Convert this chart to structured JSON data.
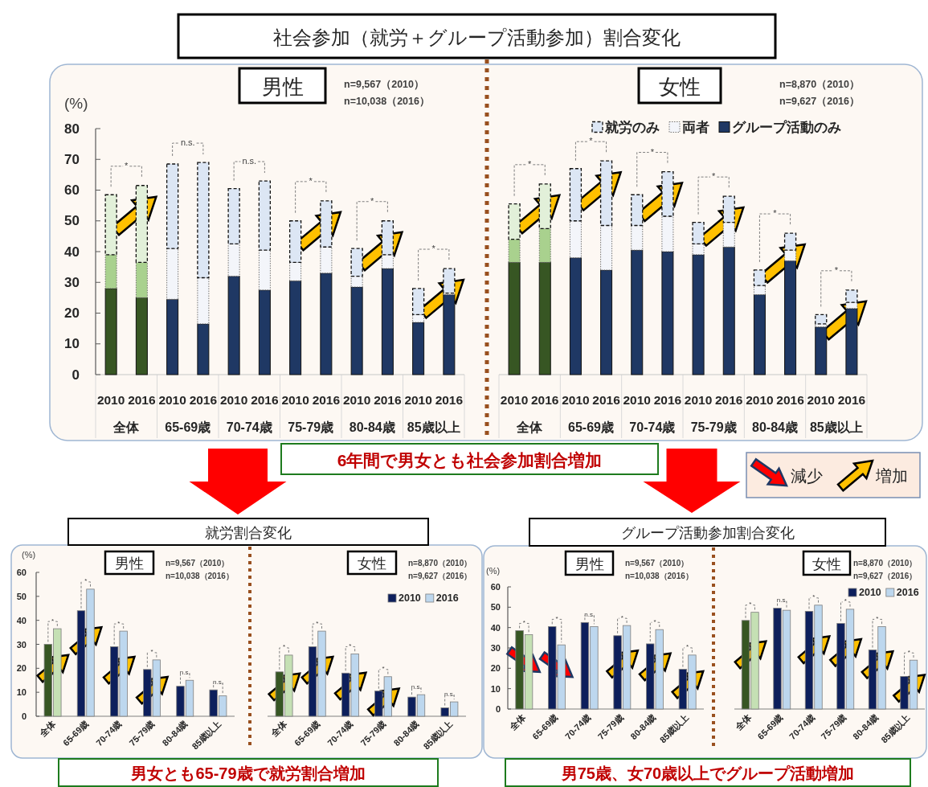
{
  "chart_data": [
    {
      "type": "other",
      "title": "社会参加（就労＋グループ活動参加）割合変化",
      "annotations": [
        "6年間で男女とも社会参加割合増加"
      ]
    },
    {
      "type": "bar",
      "stacked": true,
      "title": "男性",
      "ylabel": "(%)",
      "categories": [
        "2010",
        "2016",
        "2010",
        "2016",
        "2010",
        "2016",
        "2010",
        "2016",
        "2010",
        "2016",
        "2010",
        "2016"
      ],
      "series": [
        {
          "colors": [
            "#375623",
            "#375623",
            "#1f3864",
            "#1f3864",
            "#1f3864",
            "#1f3864",
            "#1f3864",
            "#1f3864",
            "#1f3864",
            "#1f3864",
            "#1f3864",
            "#1f3864"
          ],
          "values": [
            28,
            25,
            24.5,
            16.5,
            32,
            27.5,
            30.5,
            33,
            28.5,
            34.5,
            17,
            26
          ]
        },
        {
          "colors": [
            "#a9d18e",
            "#a9d18e",
            "#f3f5fa",
            "#f3f5fa",
            "#f3f5fa",
            "#f3f5fa",
            "#f3f5fa",
            "#f3f5fa",
            "#f3f5fa",
            "#f3f5fa",
            "#f3f5fa",
            "#f3f5fa"
          ],
          "values": [
            11,
            11.5,
            16.5,
            15,
            10.5,
            13,
            6,
            8.5,
            3.5,
            4.5,
            2.5,
            0.5
          ]
        },
        {
          "colors": [
            "#e2f0d9",
            "#e2f0d9",
            "#dce6f4",
            "#dce6f4",
            "#dce6f4",
            "#dce6f4",
            "#dce6f4",
            "#dce6f4",
            "#dce6f4",
            "#dce6f4",
            "#dce6f4",
            "#dce6f4"
          ],
          "values": [
            19.5,
            25,
            27.5,
            37.5,
            18,
            22.5,
            13.5,
            15,
            9,
            11,
            8.5,
            8
          ]
        }
      ],
      "ylim": [
        0,
        80
      ],
      "yticks": [
        0,
        10,
        20,
        30,
        40,
        50,
        60,
        70,
        80
      ],
      "annotations": [
        "n=9,567（2010）",
        "n=10,038（2016）",
        "全体",
        "65-69歳",
        "70-74歳",
        "75-79歳",
        "80-84歳",
        "85歳以上",
        "*",
        "n.s.",
        "n.s.",
        "*",
        "*",
        "*"
      ]
    },
    {
      "type": "bar",
      "stacked": true,
      "title": "女性",
      "categories": [
        "2010",
        "2016",
        "2010",
        "2016",
        "2010",
        "2016",
        "2010",
        "2016",
        "2010",
        "2016",
        "2010",
        "2016"
      ],
      "series": [
        {
          "name": "グループ活動のみ",
          "color": "#1f3864",
          "colors": [
            "#375623",
            "#375623",
            "#1f3864",
            "#1f3864",
            "#1f3864",
            "#1f3864",
            "#1f3864",
            "#1f3864",
            "#1f3864",
            "#1f3864",
            "#1f3864",
            "#1f3864"
          ],
          "values": [
            36.5,
            36.5,
            38,
            34,
            40.5,
            40,
            39,
            41.5,
            26,
            37,
            15.5,
            21.5
          ]
        },
        {
          "name": "両者",
          "color": "#f3f5fa",
          "colors": [
            "#a9d18e",
            "#a9d18e",
            "#f3f5fa",
            "#f3f5fa",
            "#f3f5fa",
            "#f3f5fa",
            "#f3f5fa",
            "#f3f5fa",
            "#f3f5fa",
            "#f3f5fa",
            "#f3f5fa",
            "#f3f5fa"
          ],
          "values": [
            7.5,
            11,
            12,
            14.5,
            8,
            11.5,
            3.5,
            8,
            3,
            3.5,
            1,
            2
          ]
        },
        {
          "name": "就労のみ",
          "color": "#dce6f4",
          "colors": [
            "#e2f0d9",
            "#e2f0d9",
            "#dce6f4",
            "#dce6f4",
            "#dce6f4",
            "#dce6f4",
            "#dce6f4",
            "#dce6f4",
            "#dce6f4",
            "#dce6f4",
            "#dce6f4",
            "#dce6f4"
          ],
          "values": [
            11.5,
            14.5,
            17,
            21,
            10,
            14.5,
            7,
            8.5,
            5,
            5.5,
            3,
            4
          ]
        }
      ],
      "ylim": [
        0,
        80
      ],
      "tick_labels": "x",
      "legend": "top right",
      "annotations": [
        "n=8,870（2010）",
        "n=9,627（2016）",
        "全体",
        "65-69歳",
        "70-74歳",
        "75-79歳",
        "80-84歳",
        "85歳以上",
        "*",
        "*",
        "*",
        "*",
        "*",
        "*"
      ]
    },
    {
      "type": "other",
      "annotations": [
        "減少",
        "増加"
      ]
    },
    {
      "type": "other",
      "title": "就労割合変化",
      "annotations": [
        "男女とも65-79歳で就労割合増加"
      ]
    },
    {
      "type": "bar",
      "title": "男性",
      "ylabel": "(%)",
      "categories": [
        "全体",
        "65-69歳",
        "70-74歳",
        "75-79歳",
        "80-84歳",
        "85歳以上"
      ],
      "series": [
        {
          "colors": [
            "#375623",
            "#0d1f5c",
            "#0d1f5c",
            "#0d1f5c",
            "#0d1f5c",
            "#0d1f5c"
          ],
          "values": [
            30,
            44,
            29,
            19.5,
            12.5,
            11
          ]
        },
        {
          "colors": [
            "#c5e0b4",
            "#bdd7ee",
            "#bdd7ee",
            "#bdd7ee",
            "#bdd7ee",
            "#bdd7ee"
          ],
          "values": [
            36.5,
            53,
            35.5,
            23.5,
            15,
            8.5
          ]
        }
      ],
      "ylim": [
        0,
        60
      ],
      "yticks": [
        0,
        10,
        20,
        30,
        40,
        50,
        60
      ],
      "annotations": [
        "n=9,567（2010）",
        "n=10,038（2016）",
        "*",
        "*",
        "*",
        "*",
        "n.s.",
        "n.s."
      ]
    },
    {
      "type": "bar",
      "title": "女性",
      "categories": [
        "全体",
        "65-69歳",
        "70-74歳",
        "75-79歳",
        "80-84歳",
        "85歳以上"
      ],
      "series": [
        {
          "name": "2010",
          "color": "#0d1f5c",
          "colors": [
            "#375623",
            "#0d1f5c",
            "#0d1f5c",
            "#0d1f5c",
            "#0d1f5c",
            "#0d1f5c"
          ],
          "values": [
            18.5,
            29,
            18,
            10.5,
            8,
            3.5
          ]
        },
        {
          "name": "2016",
          "color": "#bdd7ee",
          "colors": [
            "#c5e0b4",
            "#bdd7ee",
            "#bdd7ee",
            "#bdd7ee",
            "#bdd7ee",
            "#bdd7ee"
          ],
          "values": [
            25.5,
            35.5,
            26,
            16.5,
            9,
            6
          ]
        }
      ],
      "ylim": [
        0,
        60
      ],
      "tick_labels": "x",
      "legend": "top right",
      "annotations": [
        "n=8,870（2010）",
        "n=9,627（2016）",
        "*",
        "*",
        "*",
        "*",
        "n.s.",
        "n.s."
      ]
    },
    {
      "type": "other",
      "title": "グループ活動参加割合変化",
      "annotations": [
        "男75歳、女70歳以上でグループ活動増加"
      ]
    },
    {
      "type": "bar",
      "title": "男性",
      "ylabel": "(%)",
      "categories": [
        "全体",
        "65-69歳",
        "70-74歳",
        "75-79歳",
        "80-84歳",
        "85歳以上"
      ],
      "series": [
        {
          "colors": [
            "#375623",
            "#0d1f5c",
            "#0d1f5c",
            "#0d1f5c",
            "#0d1f5c",
            "#0d1f5c"
          ],
          "values": [
            38.5,
            40.5,
            42.5,
            36,
            32,
            19.5
          ]
        },
        {
          "colors": [
            "#c5e0b4",
            "#bdd7ee",
            "#bdd7ee",
            "#bdd7ee",
            "#bdd7ee",
            "#bdd7ee"
          ],
          "values": [
            36.5,
            31.5,
            40.5,
            41,
            39,
            26.5
          ]
        }
      ],
      "ylim": [
        0,
        60
      ],
      "yticks": [
        0,
        10,
        20,
        30,
        40,
        50,
        60
      ],
      "annotations": [
        "n=9,567（2010）",
        "n=10,038（2016）",
        "*",
        "*",
        "n.s.",
        "*",
        "*",
        "*"
      ]
    },
    {
      "type": "bar",
      "title": "女性",
      "categories": [
        "全体",
        "65-69歳",
        "70-74歳",
        "75-79歳",
        "80-84歳",
        "85歳以上"
      ],
      "series": [
        {
          "name": "2010",
          "color": "#0d1f5c",
          "colors": [
            "#375623",
            "#0d1f5c",
            "#0d1f5c",
            "#0d1f5c",
            "#0d1f5c",
            "#0d1f5c"
          ],
          "values": [
            43.5,
            49.5,
            48,
            42,
            29,
            16
          ]
        },
        {
          "name": "2016",
          "color": "#bdd7ee",
          "colors": [
            "#c5e0b4",
            "#bdd7ee",
            "#bdd7ee",
            "#bdd7ee",
            "#bdd7ee",
            "#bdd7ee"
          ],
          "values": [
            47.5,
            48.5,
            51,
            49,
            40.5,
            24
          ]
        }
      ],
      "ylim": [
        0,
        60
      ],
      "tick_labels": "x",
      "legend": "top right",
      "annotations": [
        "n=8,870（2010）",
        "n=9,627（2016）",
        "*",
        "n.s.",
        "*",
        "*",
        "*",
        "*"
      ]
    }
  ]
}
